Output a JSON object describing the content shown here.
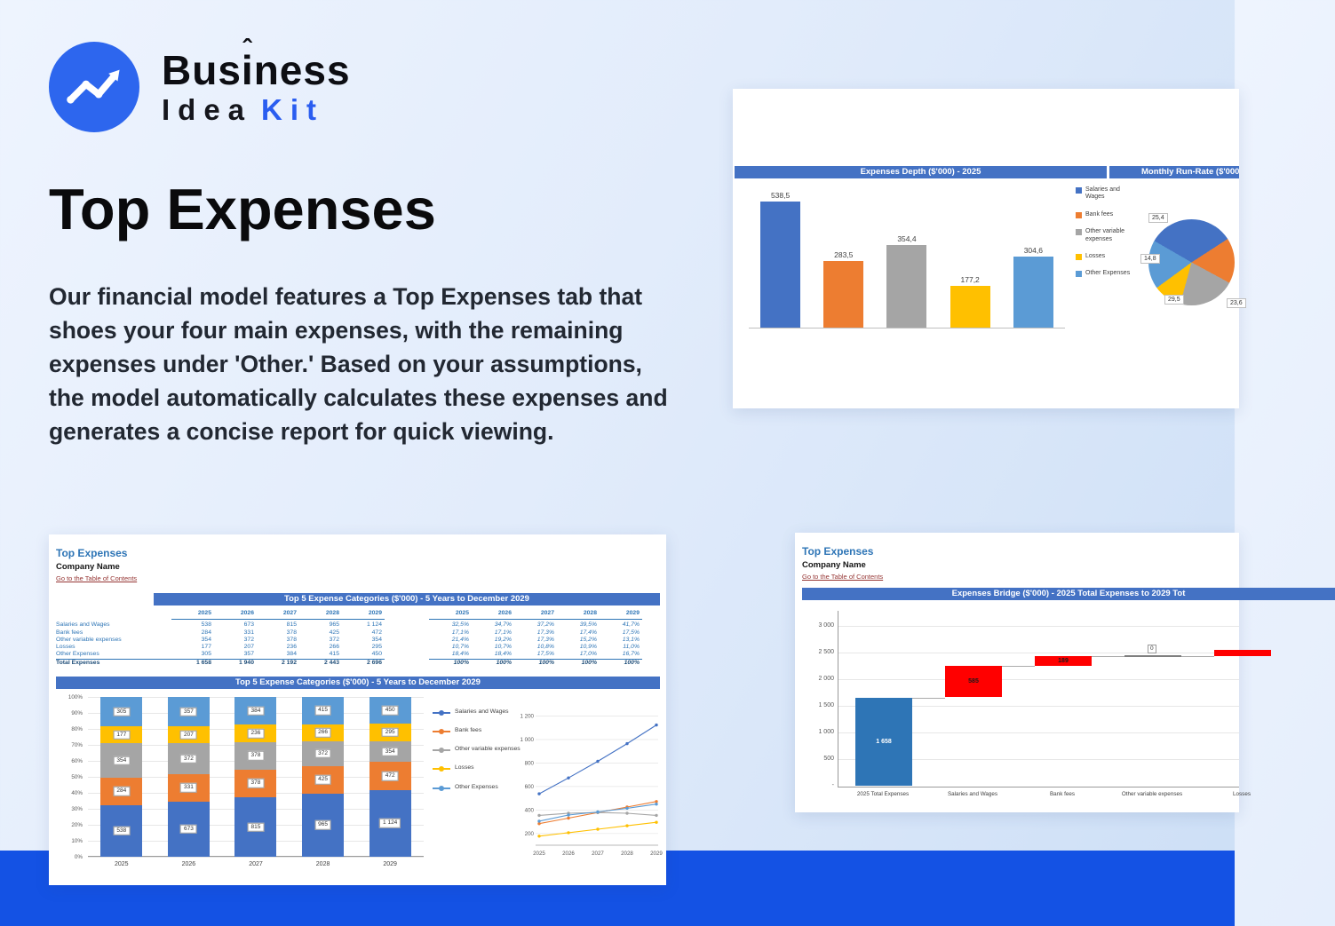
{
  "colors": {
    "brand_blue": "#2d66ee",
    "kit_blue": "#2a5df0",
    "footer_band": "#1452e4",
    "excel_header": "#4472C4",
    "series": [
      "#4472C4",
      "#ED7D31",
      "#A5A5A5",
      "#FFC000",
      "#5B9BD5"
    ],
    "waterfall_start": "#2E75B6",
    "waterfall_increase": "#FF0000",
    "sheet_title_blue": "#2E75B6",
    "link_maroon": "#963634"
  },
  "logo": {
    "brand_top_pre": "Bus",
    "brand_top_i": "i",
    "brand_top_post": "ness",
    "caret": "ˆ",
    "brand_bottom_left": "Idea",
    "brand_bottom_right": "Kit"
  },
  "hero": {
    "title": "Top Expenses",
    "description": "Our financial model features a Top Expenses tab that shoes your four main expenses, with the remaining expenses under 'Other.' Based on your assumptions, the model automatically calculates these expenses and generates a concise report for quick viewing."
  },
  "card_runrate": {
    "header_left": "Expenses Depth ($'000) - 2025",
    "header_right": "Monthly Run-Rate ($'000"
  },
  "card_top5": {
    "sheet_title": "Top Expenses",
    "company": "Company Name",
    "toc_link": "Go to the Table of Contents",
    "table_header": "Top 5 Expense Categories ($'000) - 5 Years to December 2029",
    "chart_header": "Top 5 Expense Categories ($'000) - 5 Years to December 2029",
    "years": [
      "2025",
      "2026",
      "2027",
      "2028",
      "2029"
    ],
    "rows": [
      {
        "label": "Salaries and Wages",
        "values": [
          "538",
          "673",
          "815",
          "965",
          "1 124"
        ],
        "pcts": [
          "32,5%",
          "34,7%",
          "37,2%",
          "39,5%",
          "41,7%"
        ]
      },
      {
        "label": "Bank fees",
        "values": [
          "284",
          "331",
          "378",
          "425",
          "472"
        ],
        "pcts": [
          "17,1%",
          "17,1%",
          "17,3%",
          "17,4%",
          "17,5%"
        ]
      },
      {
        "label": "Other variable expenses",
        "values": [
          "354",
          "372",
          "378",
          "372",
          "354"
        ],
        "pcts": [
          "21,4%",
          "19,2%",
          "17,3%",
          "15,2%",
          "13,1%"
        ]
      },
      {
        "label": "Losses",
        "values": [
          "177",
          "207",
          "236",
          "266",
          "295"
        ],
        "pcts": [
          "10,7%",
          "10,7%",
          "10,8%",
          "10,9%",
          "11,0%"
        ]
      },
      {
        "label": "Other Expenses",
        "values": [
          "305",
          "357",
          "384",
          "415",
          "450"
        ],
        "pcts": [
          "18,4%",
          "18,4%",
          "17,5%",
          "17,0%",
          "16,7%"
        ]
      }
    ],
    "total_row": {
      "label": "Total Expenses",
      "values": [
        "1 658",
        "1 940",
        "2 192",
        "2 443",
        "2 696"
      ],
      "pcts": [
        "100%",
        "100%",
        "100%",
        "100%",
        "100%"
      ]
    }
  },
  "card_bridge": {
    "sheet_title": "Top Expenses",
    "company": "Company Name",
    "toc_link": "Go to the Table of Contents",
    "header": "Expenses Bridge ($'000) - 2025 Total Expenses to 2029 Tot"
  },
  "chart_data": [
    {
      "id": "expenses_depth_bar",
      "type": "bar",
      "title": "Expenses Depth ($'000) - 2025",
      "categories": [
        "Salaries and Wages",
        "Bank fees",
        "Other variable expenses",
        "Losses",
        "Other Expenses"
      ],
      "values": [
        538.5,
        283.5,
        354.4,
        177.2,
        304.6
      ],
      "value_labels": [
        "538,5",
        "283,5",
        "354,4",
        "177,2",
        "304,6"
      ],
      "colors": [
        "#4472C4",
        "#ED7D31",
        "#A5A5A5",
        "#FFC000",
        "#5B9BD5"
      ],
      "ylim": [
        0,
        600
      ],
      "grid": false,
      "legend_position": "right"
    },
    {
      "id": "monthly_runrate_pie",
      "type": "pie",
      "title": "Monthly Run-Rate ($'000",
      "categories": [
        "Salaries and Wages",
        "Bank fees",
        "Other variable expenses",
        "Losses",
        "Other Expenses"
      ],
      "values": [
        44.9,
        23.6,
        29.5,
        14.8,
        25.4
      ],
      "visible_labels": [
        "25,4",
        "14,8",
        "29,5",
        "23,6"
      ],
      "colors": [
        "#4472C4",
        "#ED7D31",
        "#A5A5A5",
        "#FFC000",
        "#5B9BD5"
      ],
      "start_angle": -60
    },
    {
      "id": "top5_stacked",
      "type": "bar",
      "stacked": true,
      "percent_stacked": true,
      "title": "Top 5 Expense Categories ($'000) - 5 Years to December 2029",
      "categories": [
        "2025",
        "2026",
        "2027",
        "2028",
        "2029"
      ],
      "series": [
        {
          "name": "Salaries and Wages",
          "values": [
            538,
            673,
            815,
            965,
            1124
          ],
          "labels": [
            "538",
            "673",
            "815",
            "965",
            "1 124"
          ],
          "color": "#4472C4"
        },
        {
          "name": "Bank fees",
          "values": [
            284,
            331,
            378,
            425,
            472
          ],
          "labels": [
            "284",
            "331",
            "378",
            "425",
            "472"
          ],
          "color": "#ED7D31"
        },
        {
          "name": "Other variable expenses",
          "values": [
            354,
            372,
            378,
            372,
            354
          ],
          "labels": [
            "354",
            "372",
            "378",
            "372",
            "354"
          ],
          "color": "#A5A5A5"
        },
        {
          "name": "Losses",
          "values": [
            177,
            207,
            236,
            266,
            295
          ],
          "labels": [
            "177",
            "207",
            "236",
            "266",
            "295"
          ],
          "color": "#FFC000"
        },
        {
          "name": "Other Expenses",
          "values": [
            305,
            357,
            384,
            415,
            450
          ],
          "labels": [
            "305",
            "357",
            "384",
            "415",
            "450"
          ],
          "color": "#5B9BD5"
        }
      ],
      "y_ticks": [
        "100%",
        "90%",
        "80%",
        "70%",
        "60%",
        "50%",
        "40%",
        "30%",
        "20%",
        "10%",
        "0%"
      ],
      "grid": true,
      "legend_position": "right"
    },
    {
      "id": "top5_lines",
      "type": "line",
      "x": [
        "2025",
        "2026",
        "2027",
        "2028",
        "2029"
      ],
      "series": [
        {
          "name": "Salaries and Wages",
          "values": [
            538,
            673,
            815,
            965,
            1124
          ],
          "color": "#4472C4"
        },
        {
          "name": "Bank fees",
          "values": [
            284,
            331,
            378,
            425,
            472
          ],
          "color": "#ED7D31"
        },
        {
          "name": "Other variable expenses",
          "values": [
            354,
            372,
            378,
            372,
            354
          ],
          "color": "#A5A5A5"
        },
        {
          "name": "Losses",
          "values": [
            177,
            207,
            236,
            266,
            295
          ],
          "color": "#FFC000"
        },
        {
          "name": "Other Expenses",
          "values": [
            305,
            357,
            384,
            415,
            450
          ],
          "color": "#5B9BD5"
        }
      ],
      "y_ticks": [
        "1 200",
        "1 000",
        "800",
        "600",
        "400",
        "200"
      ],
      "ylim": [
        100,
        1250
      ],
      "grid": true
    },
    {
      "id": "expenses_bridge",
      "type": "waterfall",
      "title": "Expenses Bridge ($'000) - 2025 Total Expenses to 2029 Tot",
      "categories": [
        "2025 Total Expenses",
        "Salaries and Wages",
        "Bank fees",
        "Other variable expenses",
        "Losses"
      ],
      "values": [
        1658,
        585,
        189,
        0,
        118
      ],
      "value_labels": [
        "1 658",
        "585",
        "189",
        "0",
        ""
      ],
      "y_ticks": [
        "3 000",
        "2 500",
        "2 000",
        "1 500",
        "1 000",
        "500",
        "-"
      ],
      "ylim": [
        0,
        3000
      ],
      "colors": {
        "start": "#2E75B6",
        "increase": "#FF0000"
      },
      "grid": true
    }
  ]
}
